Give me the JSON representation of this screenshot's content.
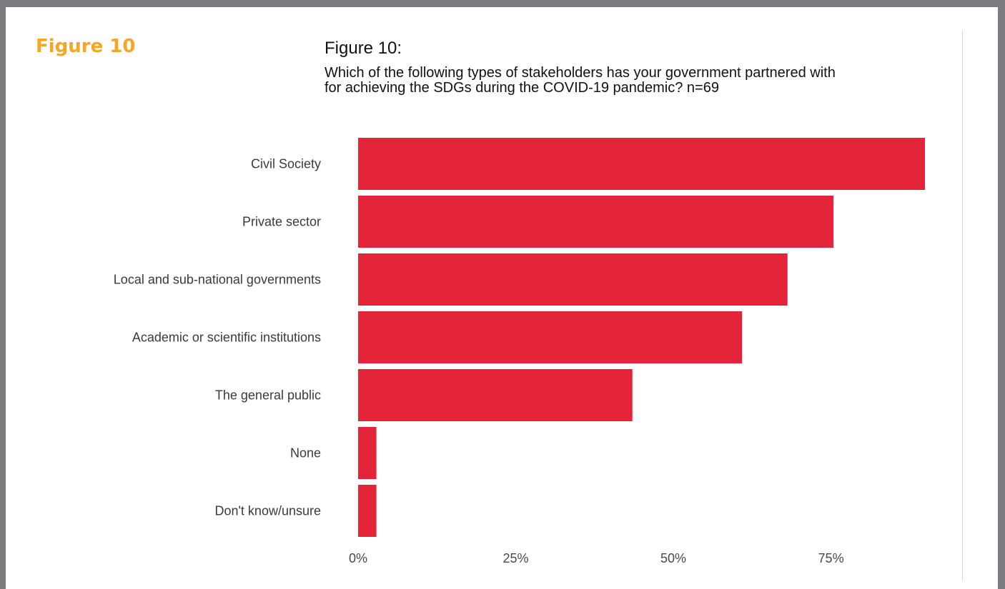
{
  "page": {
    "side_label": "Figure 10"
  },
  "chart_data": {
    "type": "bar",
    "orientation": "horizontal",
    "title": "Figure 10:",
    "subtitle": "Which of the following types of stakeholders has your government partnered with for achieving the SDGs during the COVID-19 pandemic? n=69",
    "categories": [
      "Civil Society",
      "Private sector",
      "Local and sub-national governments",
      "Academic or scientific institutions",
      "The general public",
      "None",
      "Don't know/unsure"
    ],
    "values": [
      89.9,
      75.4,
      68.1,
      60.9,
      43.5,
      2.9,
      2.9
    ],
    "xlim": [
      0,
      89.9
    ],
    "xticks": [
      0,
      25,
      50,
      75
    ],
    "xtick_labels": [
      "0%",
      "25%",
      "50%",
      "75%"
    ],
    "xlabel": "",
    "ylabel": "",
    "bar_color": "#e42539",
    "grid": false,
    "legend": "none"
  }
}
